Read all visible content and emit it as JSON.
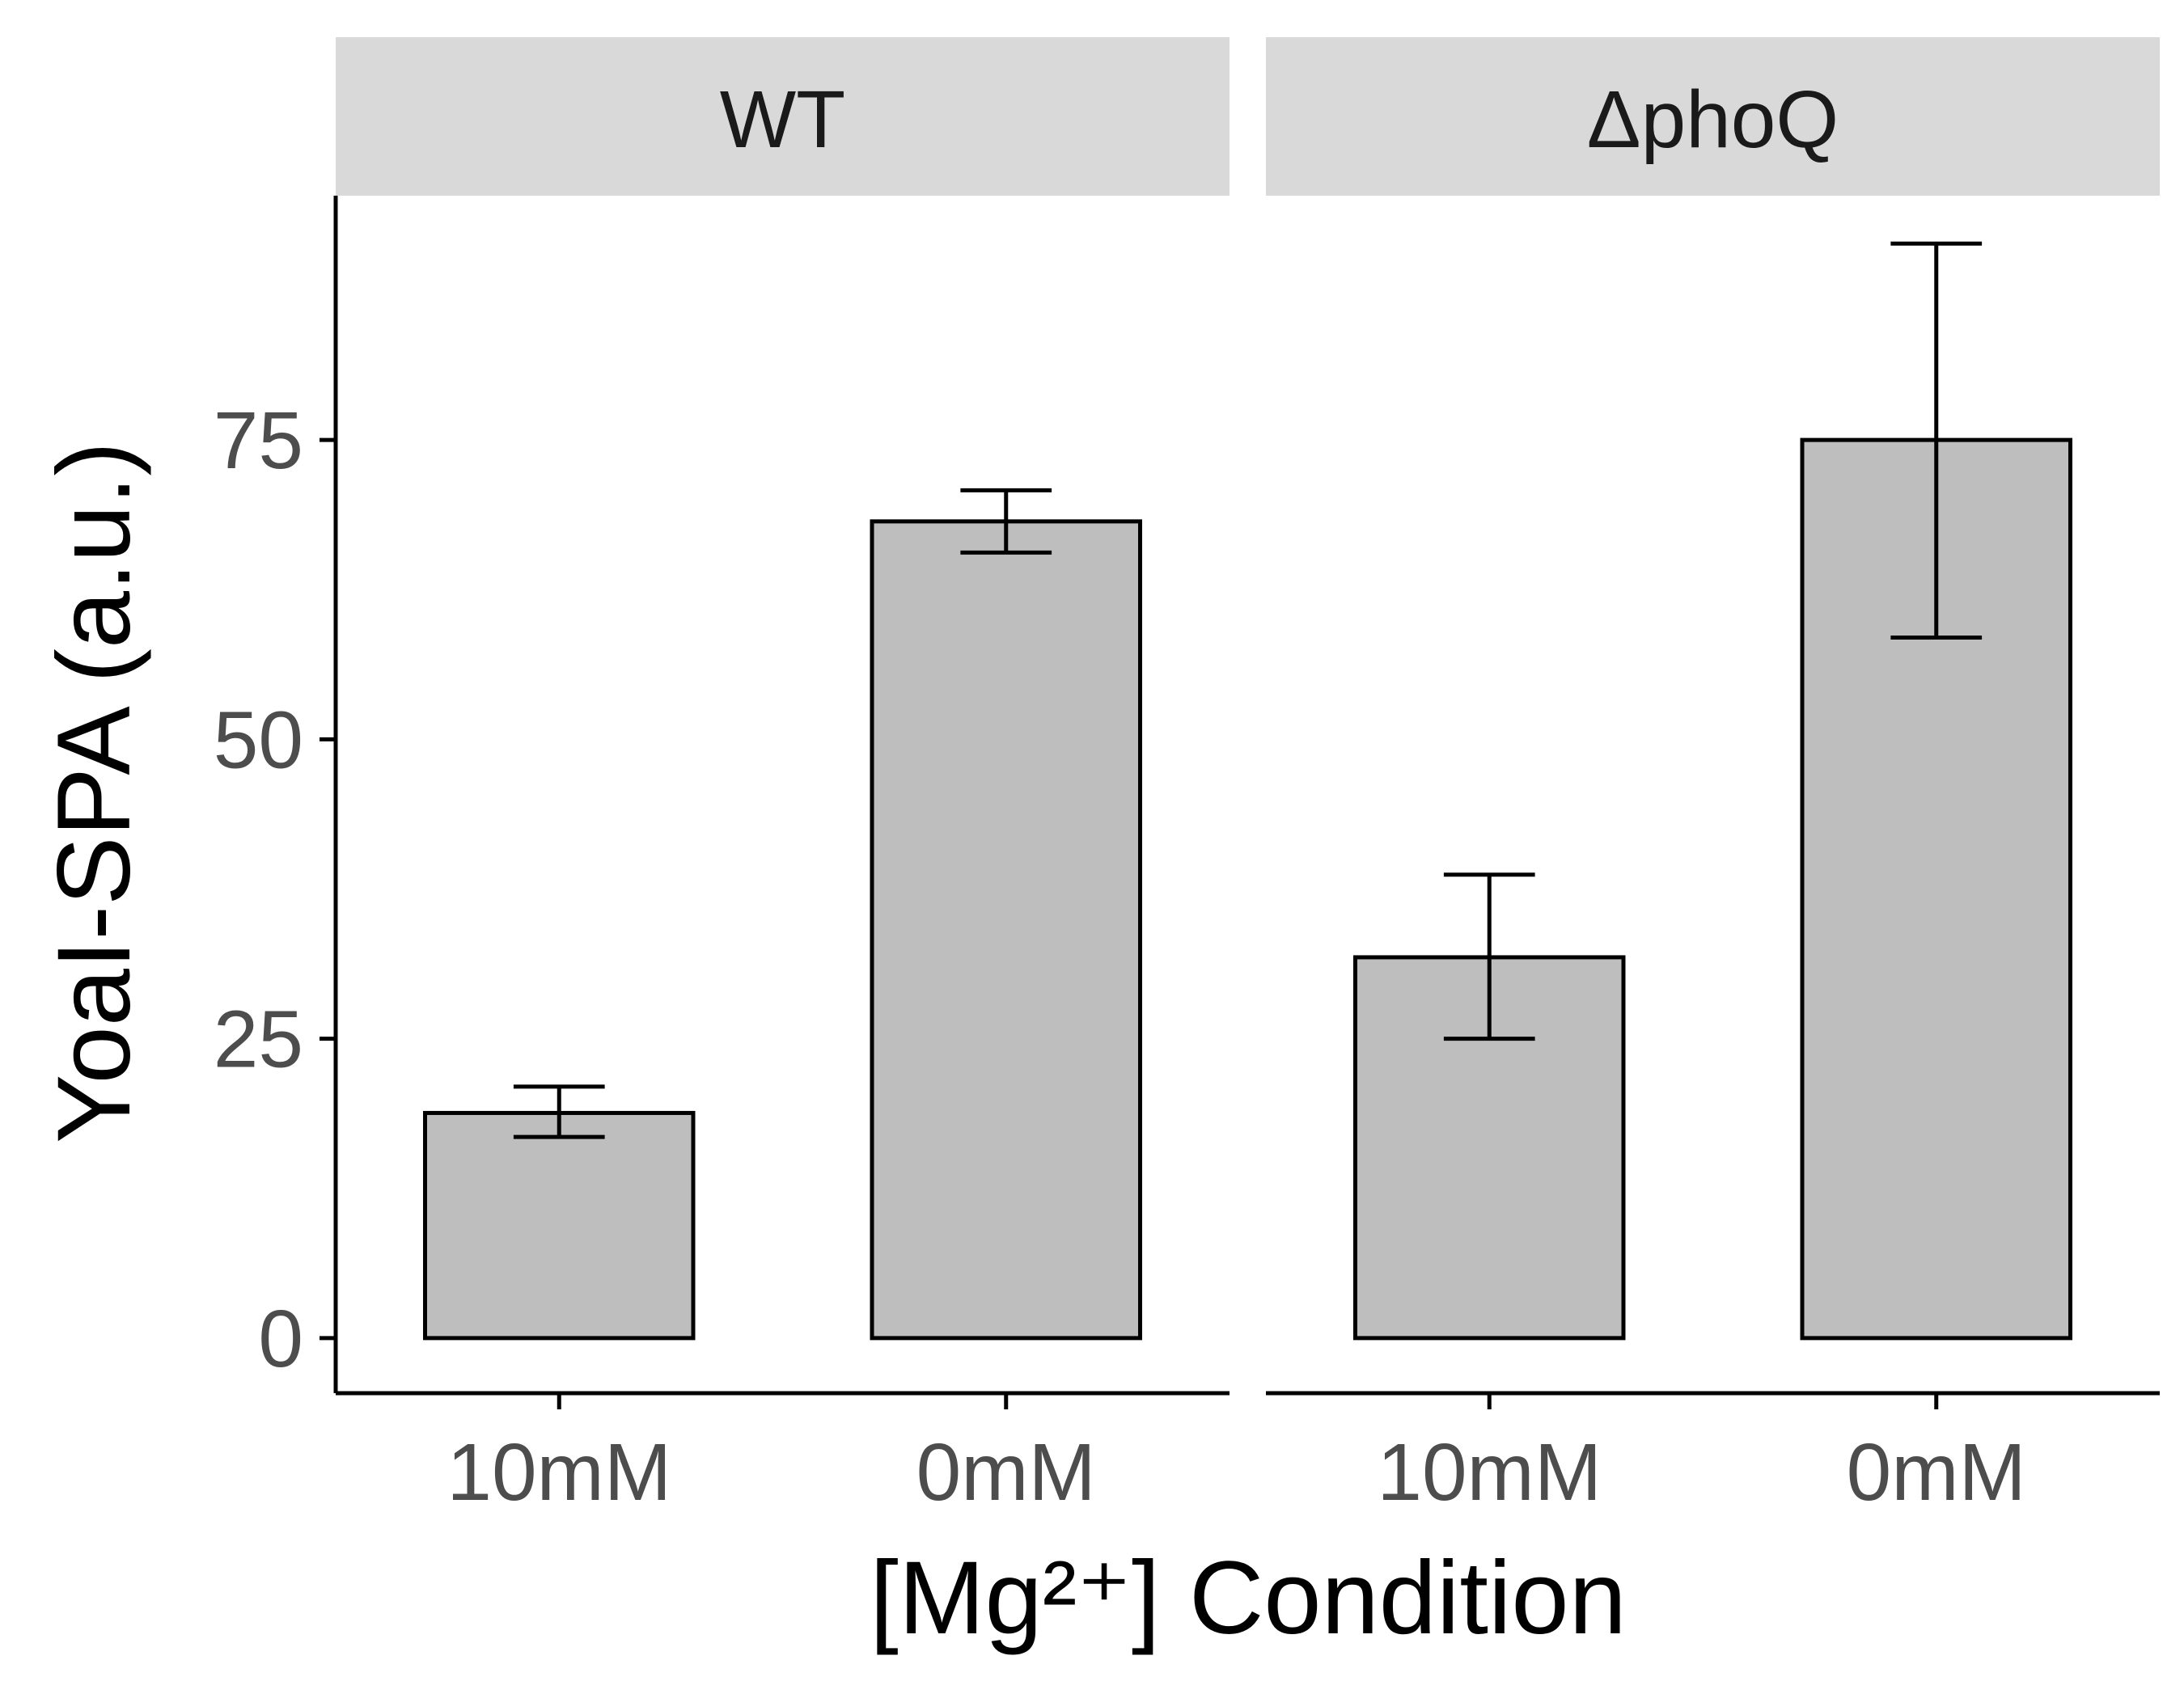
{
  "chart_data": {
    "type": "bar",
    "facet_variable": "strain",
    "facets": [
      {
        "label": "WT",
        "categories": [
          "10mM",
          "0mM"
        ],
        "values": [
          18.8,
          68.2
        ],
        "error_low": [
          16.8,
          65.6
        ],
        "error_high": [
          21.0,
          70.8
        ]
      },
      {
        "label": "ΔphoQ",
        "categories": [
          "10mM",
          "0mM"
        ],
        "values": [
          31.8,
          75.0
        ],
        "error_low": [
          25.0,
          58.5
        ],
        "error_high": [
          38.7,
          91.4
        ]
      }
    ],
    "xlabel": "[Mg²⁺] Condition",
    "ylabel": "YoaI-SPA (a.u.)",
    "yticks": [
      0,
      25,
      50,
      75
    ],
    "ytick_labels": [
      "0",
      "25",
      "50",
      "75"
    ],
    "ylim": [
      -4.6,
      95.4
    ],
    "bar_color": "#bebebe",
    "strip_color": "#d9d9d9",
    "grid": false,
    "legend": "none"
  }
}
